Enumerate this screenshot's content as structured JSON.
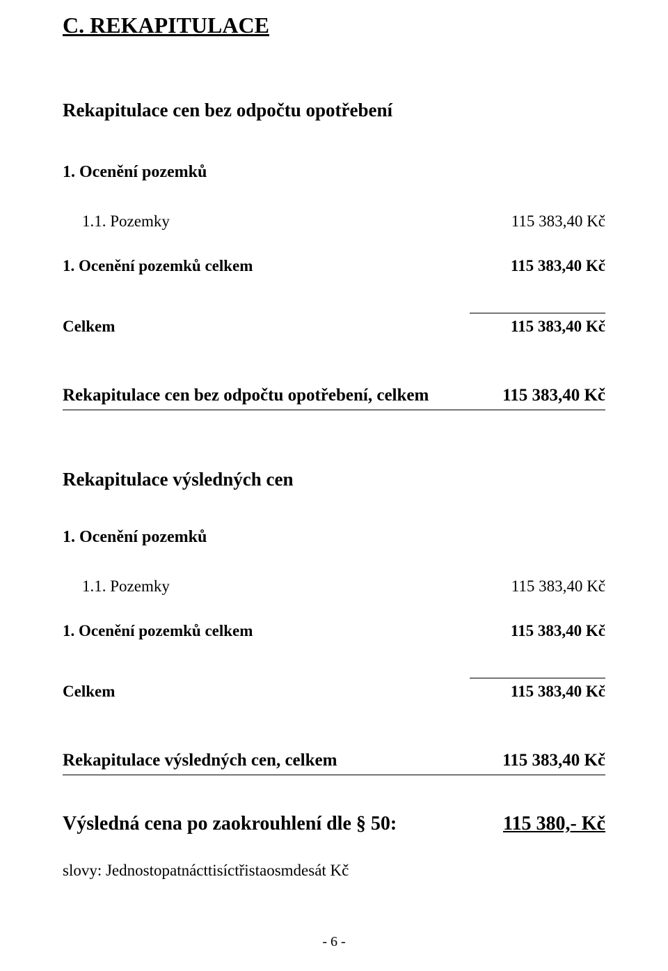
{
  "title": "C. REKAPITULACE",
  "section1": {
    "heading": "Rekapitulace cen bez odpočtu opotřebení",
    "subheading": "1. Ocenění pozemků",
    "item": {
      "label": "1.1. Pozemky",
      "value": "115 383,40 Kč"
    },
    "subtotal": {
      "label": "1. Ocenění pozemků celkem",
      "value": "115 383,40 Kč"
    },
    "total": {
      "label": "Celkem",
      "value": "115 383,40 Kč"
    },
    "summary": {
      "label": "Rekapitulace cen bez odpočtu opotřebení, celkem",
      "value": "115 383,40 Kč"
    }
  },
  "section2": {
    "heading": "Rekapitulace výsledných cen",
    "subheading": "1. Ocenění pozemků",
    "item": {
      "label": "1.1. Pozemky",
      "value": "115 383,40 Kč"
    },
    "subtotal": {
      "label": "1. Ocenění pozemků celkem",
      "value": "115 383,40 Kč"
    },
    "total": {
      "label": "Celkem",
      "value": "115 383,40 Kč"
    },
    "summary": {
      "label": "Rekapitulace výsledných cen, celkem",
      "value": "115 383,40 Kč"
    }
  },
  "final": {
    "label": "Výsledná cena po zaokrouhlení dle § 50:",
    "value": "115 380,- Kč"
  },
  "slovy": "slovy: Jednostopatnácttisíctřistaosmdesát Kč",
  "footer": "- 6 -"
}
